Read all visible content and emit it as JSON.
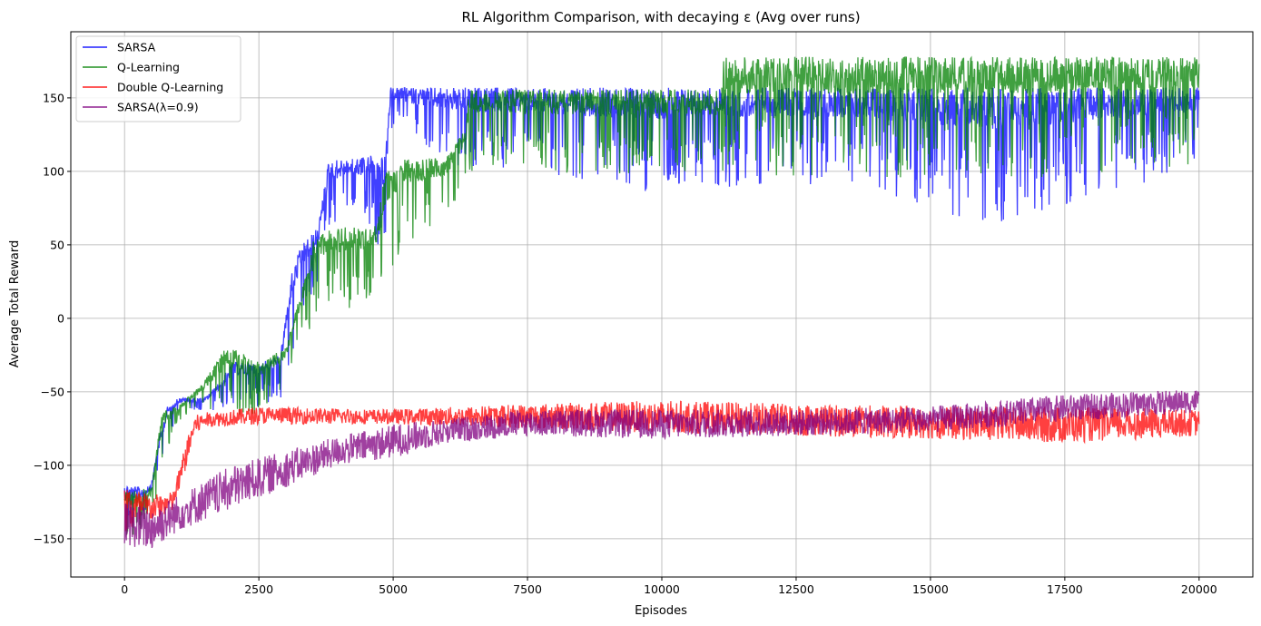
{
  "chart_data": {
    "type": "line",
    "title": "RL Algorithm Comparison, with decaying ε (Avg over runs)",
    "xlabel": "Episodes",
    "ylabel": "Average Total Reward",
    "xlim": [
      -1000,
      21000
    ],
    "ylim": [
      -176,
      195
    ],
    "x_ticks": [
      0,
      2500,
      5000,
      7500,
      10000,
      12500,
      15000,
      17500,
      20000
    ],
    "x_tick_labels": [
      "0",
      "2500",
      "5000",
      "7500",
      "10000",
      "12500",
      "15000",
      "17500",
      "20000"
    ],
    "y_ticks": [
      -150,
      -100,
      -50,
      0,
      50,
      100,
      150
    ],
    "y_tick_labels": [
      "−150",
      "−100",
      "−50",
      "0",
      "50",
      "100",
      "150"
    ],
    "grid": true,
    "legend_position": "top-left",
    "episodes": 20000,
    "series": [
      {
        "name": "SARSA",
        "color": "#0000ff",
        "envelope": [
          {
            "x": 0,
            "low": -152,
            "high": -112
          },
          {
            "x": 300,
            "low": -142,
            "high": -115
          },
          {
            "x": 500,
            "low": -128,
            "high": -112
          },
          {
            "x": 650,
            "low": -105,
            "high": -80
          },
          {
            "x": 800,
            "low": -82,
            "high": -60
          },
          {
            "x": 1000,
            "low": -66,
            "high": -54
          },
          {
            "x": 1500,
            "low": -64,
            "high": -54
          },
          {
            "x": 1800,
            "low": -62,
            "high": -42
          },
          {
            "x": 2000,
            "low": -60,
            "high": -30
          },
          {
            "x": 2500,
            "low": -60,
            "high": -30
          },
          {
            "x": 2900,
            "low": -55,
            "high": -25
          },
          {
            "x": 3100,
            "low": -30,
            "high": 30
          },
          {
            "x": 3300,
            "low": 0,
            "high": 50
          },
          {
            "x": 3600,
            "low": 20,
            "high": 62
          },
          {
            "x": 3800,
            "low": 60,
            "high": 108
          },
          {
            "x": 4200,
            "low": 72,
            "high": 108
          },
          {
            "x": 4600,
            "low": 62,
            "high": 112
          },
          {
            "x": 4850,
            "low": 20,
            "high": 110
          },
          {
            "x": 4950,
            "low": 130,
            "high": 157
          },
          {
            "x": 6000,
            "low": 105,
            "high": 157
          },
          {
            "x": 8000,
            "low": 95,
            "high": 157
          },
          {
            "x": 10000,
            "low": 85,
            "high": 157
          },
          {
            "x": 12000,
            "low": 92,
            "high": 157
          },
          {
            "x": 14000,
            "low": 85,
            "high": 157
          },
          {
            "x": 16000,
            "low": 62,
            "high": 157
          },
          {
            "x": 18000,
            "low": 80,
            "high": 157
          },
          {
            "x": 20000,
            "low": 105,
            "high": 157
          }
        ]
      },
      {
        "name": "Q-Learning",
        "color": "#008000",
        "envelope": [
          {
            "x": 0,
            "low": -155,
            "high": -118
          },
          {
            "x": 500,
            "low": -140,
            "high": -115
          },
          {
            "x": 700,
            "low": -100,
            "high": -62
          },
          {
            "x": 1000,
            "low": -70,
            "high": -60
          },
          {
            "x": 1500,
            "low": -60,
            "high": -42
          },
          {
            "x": 1900,
            "low": -70,
            "high": -18
          },
          {
            "x": 2500,
            "low": -65,
            "high": -30
          },
          {
            "x": 3000,
            "low": -45,
            "high": -20
          },
          {
            "x": 3300,
            "low": -10,
            "high": 20
          },
          {
            "x": 3500,
            "low": -15,
            "high": 52
          },
          {
            "x": 3800,
            "low": 10,
            "high": 62
          },
          {
            "x": 4200,
            "low": 0,
            "high": 62
          },
          {
            "x": 4700,
            "low": 20,
            "high": 63
          },
          {
            "x": 4850,
            "low": 25,
            "high": 100
          },
          {
            "x": 5200,
            "low": 50,
            "high": 108
          },
          {
            "x": 6000,
            "low": 70,
            "high": 110
          },
          {
            "x": 6350,
            "low": 90,
            "high": 130
          },
          {
            "x": 6400,
            "low": 100,
            "high": 156
          },
          {
            "x": 8000,
            "low": 98,
            "high": 156
          },
          {
            "x": 10000,
            "low": 98,
            "high": 156
          },
          {
            "x": 11100,
            "low": 95,
            "high": 156
          },
          {
            "x": 11150,
            "low": 95,
            "high": 178
          },
          {
            "x": 14000,
            "low": 95,
            "high": 178
          },
          {
            "x": 16800,
            "low": 95,
            "high": 178
          },
          {
            "x": 18000,
            "low": 98,
            "high": 178
          },
          {
            "x": 20000,
            "low": 105,
            "high": 178
          }
        ]
      },
      {
        "name": "Double Q-Learning",
        "color": "#ff0000",
        "envelope": [
          {
            "x": 0,
            "low": -148,
            "high": -112
          },
          {
            "x": 500,
            "low": -138,
            "high": -120
          },
          {
            "x": 900,
            "low": -132,
            "high": -118
          },
          {
            "x": 1100,
            "low": -108,
            "high": -90
          },
          {
            "x": 1300,
            "low": -80,
            "high": -66
          },
          {
            "x": 1500,
            "low": -74,
            "high": -64
          },
          {
            "x": 2500,
            "low": -72,
            "high": -60
          },
          {
            "x": 5000,
            "low": -72,
            "high": -62
          },
          {
            "x": 7500,
            "low": -75,
            "high": -58
          },
          {
            "x": 10000,
            "low": -78,
            "high": -56
          },
          {
            "x": 12500,
            "low": -80,
            "high": -58
          },
          {
            "x": 15000,
            "low": -82,
            "high": -60
          },
          {
            "x": 17500,
            "low": -85,
            "high": -60
          },
          {
            "x": 20000,
            "low": -80,
            "high": -62
          }
        ]
      },
      {
        "name": "SARSA(λ=0.9)",
        "color": "#800080",
        "envelope": [
          {
            "x": 0,
            "low": -155,
            "high": -125
          },
          {
            "x": 500,
            "low": -158,
            "high": -128
          },
          {
            "x": 1000,
            "low": -145,
            "high": -120
          },
          {
            "x": 2000,
            "low": -130,
            "high": -100
          },
          {
            "x": 3000,
            "low": -115,
            "high": -90
          },
          {
            "x": 4000,
            "low": -100,
            "high": -80
          },
          {
            "x": 5000,
            "low": -95,
            "high": -72
          },
          {
            "x": 6000,
            "low": -85,
            "high": -68
          },
          {
            "x": 7500,
            "low": -80,
            "high": -62
          },
          {
            "x": 10000,
            "low": -82,
            "high": -62
          },
          {
            "x": 12500,
            "low": -80,
            "high": -62
          },
          {
            "x": 15000,
            "low": -78,
            "high": -60
          },
          {
            "x": 17500,
            "low": -70,
            "high": -52
          },
          {
            "x": 20000,
            "low": -64,
            "high": -48
          }
        ]
      }
    ]
  }
}
